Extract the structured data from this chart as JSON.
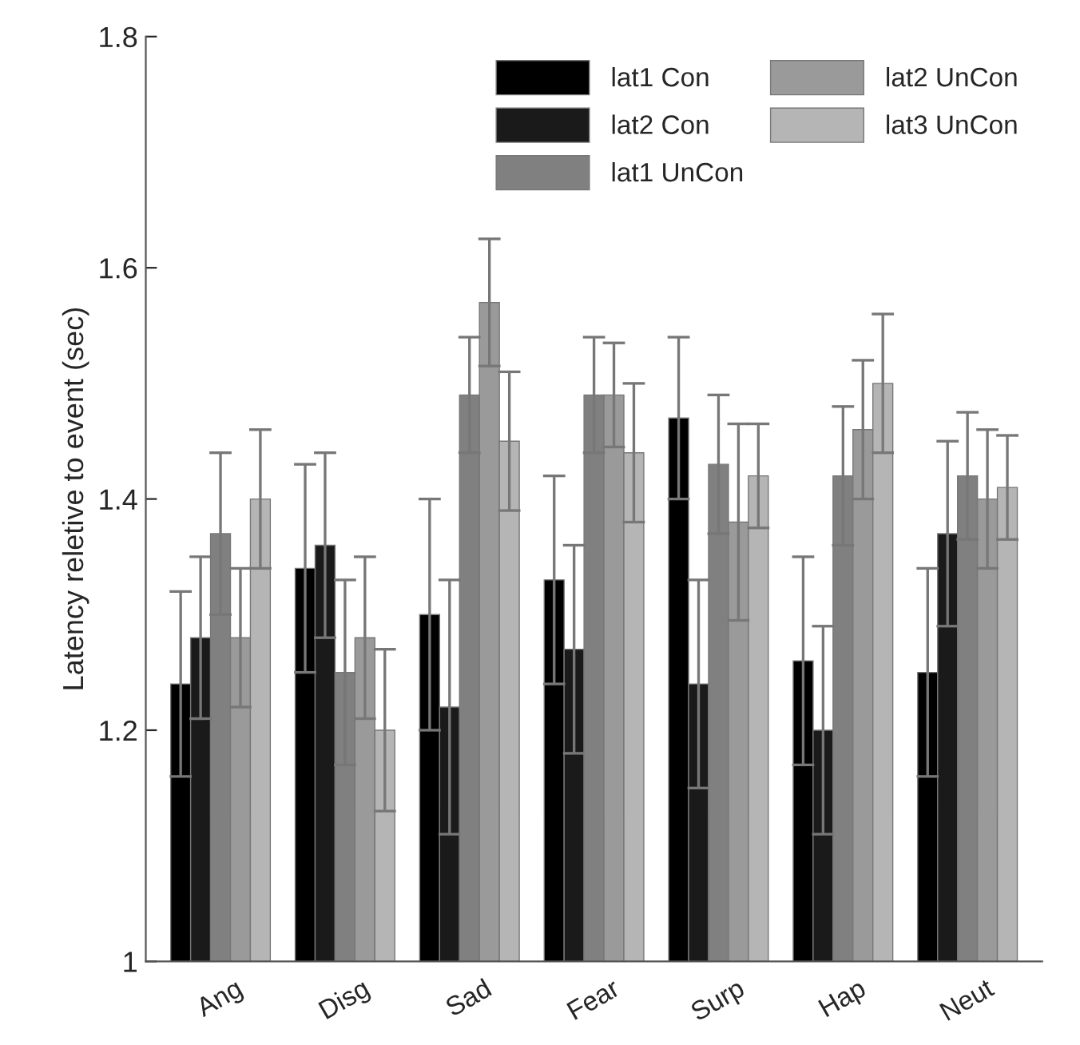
{
  "chart_data": {
    "type": "bar",
    "ylabel": "Latency reletive to event (sec)",
    "categories": [
      "Ang",
      "Disg",
      "Sad",
      "Fear",
      "Surp",
      "Hap",
      "Neut"
    ],
    "series": [
      {
        "name": "lat1 Con",
        "color": "#000000",
        "values": [
          1.24,
          1.34,
          1.3,
          1.33,
          1.47,
          1.26,
          1.25
        ],
        "errors": [
          0.08,
          0.09,
          0.1,
          0.09,
          0.07,
          0.09,
          0.09
        ]
      },
      {
        "name": "lat2 Con",
        "color": "#1a1a1a",
        "values": [
          1.28,
          1.36,
          1.22,
          1.27,
          1.24,
          1.2,
          1.37
        ],
        "errors": [
          0.07,
          0.08,
          0.11,
          0.09,
          0.09,
          0.09,
          0.08
        ]
      },
      {
        "name": "lat1 UnCon",
        "color": "#808080",
        "values": [
          1.37,
          1.25,
          1.49,
          1.49,
          1.43,
          1.42,
          1.42
        ],
        "errors": [
          0.07,
          0.08,
          0.05,
          0.05,
          0.06,
          0.06,
          0.055
        ]
      },
      {
        "name": "lat2 UnCon",
        "color": "#9a9a9a",
        "values": [
          1.28,
          1.28,
          1.57,
          1.49,
          1.38,
          1.46,
          1.4
        ],
        "errors": [
          0.06,
          0.07,
          0.055,
          0.045,
          0.085,
          0.06,
          0.06
        ]
      },
      {
        "name": "lat3 UnCon",
        "color": "#b5b5b5",
        "values": [
          1.4,
          1.2,
          1.45,
          1.44,
          1.42,
          1.5,
          1.41
        ],
        "errors": [
          0.06,
          0.07,
          0.06,
          0.06,
          0.045,
          0.06,
          0.045
        ]
      }
    ],
    "ylim": [
      1,
      1.8
    ],
    "yticks": [
      1,
      1.2,
      1.4,
      1.6,
      1.8
    ],
    "grid": false,
    "legend": "top right"
  }
}
